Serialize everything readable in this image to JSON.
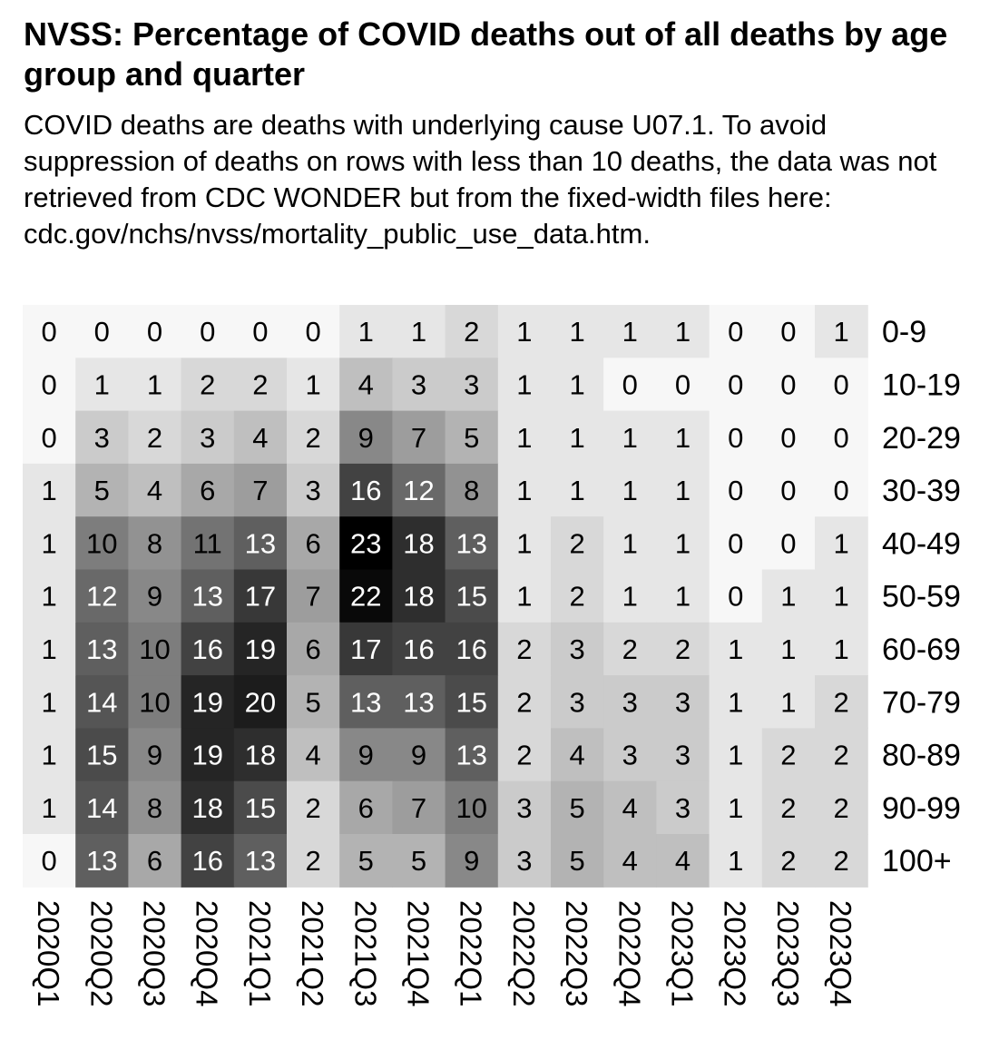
{
  "title": "NVSS: Percentage of COVID deaths out of all deaths by age group and quarter",
  "subtitle": "COVID deaths are deaths with underlying cause U07.1. To avoid suppression of deaths on rows with less than 10 deaths, the data was not retrieved from CDC WONDER but from the fixed-width files here: cdc.gov/nchs/nvss/mortality_public_use_data.htm.",
  "chart_data": {
    "type": "heatmap",
    "title": "NVSS: Percentage of COVID deaths out of all deaths by age group and quarter",
    "subtitle": "COVID deaths are deaths with underlying cause U07.1. To avoid suppression of deaths on rows with less than 10 deaths, the data was not retrieved from CDC WONDER but from the fixed-width files here: cdc.gov/nchs/nvss/mortality_public_use_data.htm.",
    "x_categories": [
      "2020Q1",
      "2020Q2",
      "2020Q3",
      "2020Q4",
      "2021Q1",
      "2021Q2",
      "2021Q3",
      "2021Q4",
      "2022Q1",
      "2022Q2",
      "2022Q3",
      "2022Q4",
      "2023Q1",
      "2023Q2",
      "2023Q3",
      "2023Q4"
    ],
    "y_categories": [
      "0-9",
      "10-19",
      "20-29",
      "30-39",
      "40-49",
      "50-59",
      "60-69",
      "70-79",
      "80-89",
      "90-99",
      "100+"
    ],
    "values": [
      [
        0,
        0,
        0,
        0,
        0,
        0,
        1,
        1,
        2,
        1,
        1,
        1,
        1,
        0,
        0,
        1
      ],
      [
        0,
        1,
        1,
        2,
        2,
        1,
        4,
        3,
        3,
        1,
        1,
        0,
        0,
        0,
        0,
        0
      ],
      [
        0,
        3,
        2,
        3,
        4,
        2,
        9,
        7,
        5,
        1,
        1,
        1,
        1,
        0,
        0,
        0
      ],
      [
        1,
        5,
        4,
        6,
        7,
        3,
        16,
        12,
        8,
        1,
        1,
        1,
        1,
        0,
        0,
        0
      ],
      [
        1,
        10,
        8,
        11,
        13,
        6,
        23,
        18,
        13,
        1,
        2,
        1,
        1,
        0,
        0,
        1
      ],
      [
        1,
        12,
        9,
        13,
        17,
        7,
        22,
        18,
        15,
        1,
        2,
        1,
        1,
        0,
        1,
        1
      ],
      [
        1,
        13,
        10,
        16,
        19,
        6,
        17,
        16,
        16,
        2,
        3,
        2,
        2,
        1,
        1,
        1
      ],
      [
        1,
        14,
        10,
        19,
        20,
        5,
        13,
        13,
        15,
        2,
        3,
        3,
        3,
        1,
        1,
        2
      ],
      [
        1,
        15,
        9,
        19,
        18,
        4,
        9,
        9,
        13,
        2,
        4,
        3,
        3,
        1,
        2,
        2
      ],
      [
        1,
        14,
        8,
        18,
        15,
        2,
        6,
        7,
        10,
        3,
        5,
        4,
        3,
        1,
        2,
        2
      ],
      [
        0,
        13,
        6,
        16,
        13,
        2,
        5,
        5,
        9,
        3,
        5,
        4,
        4,
        1,
        2,
        2
      ]
    ],
    "color_scale": {
      "low": "#ffffff",
      "high": "#000000"
    },
    "xlabel": "",
    "ylabel": "",
    "legend": "none"
  }
}
